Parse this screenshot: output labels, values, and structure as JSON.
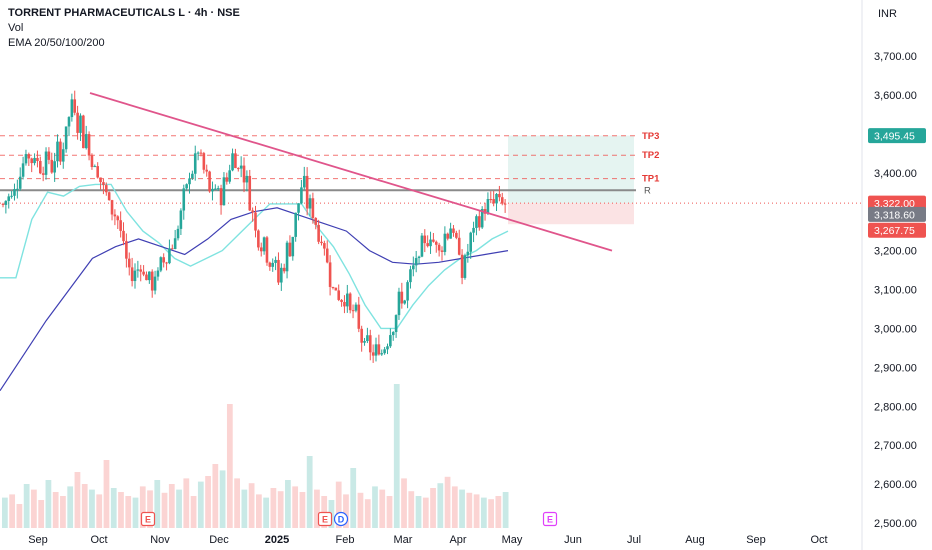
{
  "header": {
    "title": "TORRENT PHARMACEUTICALS L · 4h · NSE",
    "volume_label": "Vol",
    "ema_label": "EMA 20/50/100/200",
    "currency": "INR"
  },
  "colors": {
    "up": "#26a69a",
    "down": "#ef5350",
    "ema_fast": "#7fe3e0",
    "ema_slow": "#3f3fb3",
    "trendline": "#e0558b",
    "resistance": "#8a8a8a",
    "target_line": "#ef5350",
    "profit_zone": "#e5f4f1",
    "stop_zone": "#fbe3e4"
  },
  "chart_data": {
    "type": "candlestick",
    "title": "TORRENT PHARMACEUTICALS L · 4h · NSE",
    "y_axis": {
      "unit": "INR",
      "ticks": [
        "3,700.00",
        "3,600.00",
        "3,500.00",
        "3,400.00",
        "3,300.00",
        "3,200.00",
        "3,100.00",
        "3,000.00",
        "2,900.00",
        "2,800.00",
        "2,700.00",
        "2,600.00",
        "2,500.00"
      ],
      "ylim": [
        2490,
        3770
      ]
    },
    "x_axis": {
      "ticks": [
        "Sep",
        "Oct",
        "Nov",
        "Dec",
        "2025",
        "Feb",
        "Mar",
        "Apr",
        "May",
        "Jun",
        "Jul",
        "Aug",
        "Sep",
        "Oct"
      ]
    },
    "price_tags": [
      {
        "label": "3,495.45",
        "value": 3495.45,
        "color": "#26a69a"
      },
      {
        "label": "3,322.00",
        "value": 3322.0,
        "color": "#ef5350"
      },
      {
        "label": "3,318.60",
        "value": 3318.6,
        "color": "#787b86"
      },
      {
        "label": "3,267.75",
        "value": 3267.75,
        "color": "#ef5350"
      }
    ],
    "targets": [
      {
        "label": "TP3",
        "value": 3495
      },
      {
        "label": "TP2",
        "value": 3445
      },
      {
        "label": "TP1",
        "value": 3385
      }
    ],
    "resistance": {
      "label": "R",
      "value": 3355
    },
    "trendline": {
      "start": {
        "x": "Sep-28",
        "y": 3605
      },
      "end": {
        "x": "Jul-05",
        "y": 3200
      }
    },
    "trade_zone": {
      "entry": 3322,
      "target": 3495.45,
      "stop": 3267.75,
      "from": "May-01",
      "to": "Jul-01"
    },
    "events": [
      {
        "label": "E",
        "at": "Nov",
        "color": "#ef5350"
      },
      {
        "label": "E",
        "at": "Feb",
        "color": "#ef5350"
      },
      {
        "label": "D",
        "at": "Feb",
        "color": "#2962ff"
      },
      {
        "label": "E",
        "at": "May",
        "color": "#e040fb"
      }
    ],
    "price_path": [
      [
        3310,
        3320
      ],
      [
        3355,
        3380
      ],
      [
        3420,
        3470
      ],
      [
        3410,
        3450
      ],
      [
        3380,
        3470
      ],
      [
        3420,
        3470
      ],
      [
        3560,
        3590
      ],
      [
        3470,
        3540
      ],
      [
        3400,
        3440
      ],
      [
        3330,
        3350
      ],
      [
        3260,
        3300
      ],
      [
        3110,
        3160
      ],
      [
        3150,
        3170
      ],
      [
        3080,
        3140
      ],
      [
        3160,
        3200
      ],
      [
        3220,
        3240
      ],
      [
        3350,
        3380
      ],
      [
        3440,
        3470
      ],
      [
        3320,
        3380
      ],
      [
        3320,
        3370
      ],
      [
        3420,
        3460
      ],
      [
        3390,
        3420
      ],
      [
        3230,
        3290
      ],
      [
        3180,
        3220
      ],
      [
        3100,
        3160
      ],
      [
        3180,
        3250
      ],
      [
        3320,
        3400
      ],
      [
        3260,
        3330
      ],
      [
        3180,
        3210
      ],
      [
        3060,
        3120
      ],
      [
        3050,
        3100
      ],
      [
        2960,
        3030
      ],
      [
        2920,
        2950
      ],
      [
        2920,
        2960
      ],
      [
        3000,
        3060
      ],
      [
        3060,
        3110
      ],
      [
        3150,
        3190
      ],
      [
        3220,
        3250
      ],
      [
        3180,
        3240
      ],
      [
        3250,
        3290
      ],
      [
        3120,
        3180
      ],
      [
        3230,
        3270
      ],
      [
        3300,
        3320
      ],
      [
        3330,
        3350
      ],
      [
        3318.6,
        3318.6
      ]
    ],
    "ema_fast": [
      3130,
      3130,
      3280,
      3350,
      3340,
      3365,
      3370,
      3370,
      3300,
      3250,
      3220,
      3180,
      3160,
      3180,
      3200,
      3240,
      3280,
      3320,
      3320,
      3320,
      3260,
      3210,
      3140,
      3060,
      3000,
      3000,
      3060,
      3110,
      3150,
      3180,
      3200,
      3230,
      3250
    ],
    "ema_slow": [
      2840,
      2930,
      3020,
      3100,
      3180,
      3210,
      3230,
      3210,
      3190,
      3230,
      3280,
      3300,
      3310,
      3290,
      3270,
      3250,
      3200,
      3170,
      3165,
      3170,
      3180,
      3190,
      3200
    ],
    "volume": [
      38,
      42,
      30,
      55,
      48,
      35,
      60,
      45,
      40,
      52,
      70,
      55,
      48,
      42,
      85,
      50,
      45,
      40,
      38,
      52,
      47,
      60,
      44,
      55,
      48,
      62,
      40,
      58,
      65,
      80,
      72,
      155,
      62,
      48,
      56,
      42,
      38,
      50,
      46,
      60,
      52,
      45,
      90,
      48,
      40,
      35,
      58,
      42,
      75,
      44,
      36,
      52,
      48,
      40,
      180,
      62,
      46,
      40,
      38,
      50,
      56,
      64,
      52,
      48,
      44,
      42,
      38,
      36,
      40,
      45
    ]
  }
}
